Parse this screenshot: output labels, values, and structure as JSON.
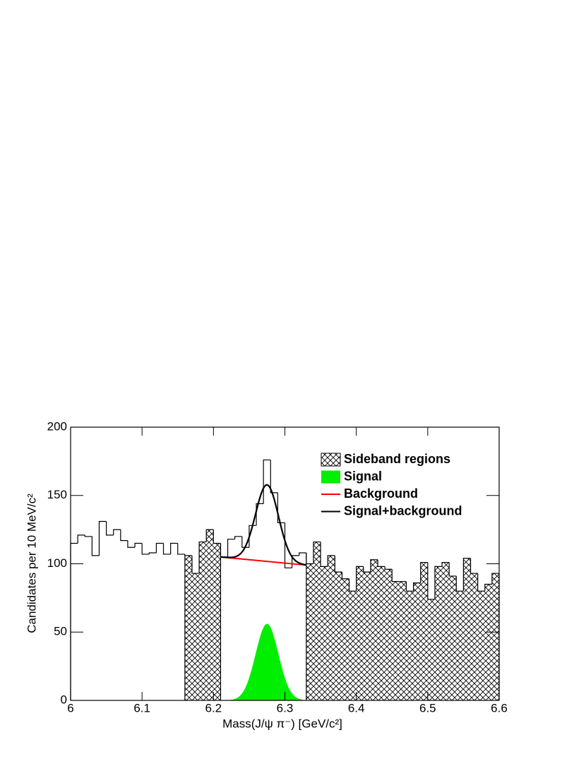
{
  "chart_data": {
    "type": "histogram",
    "xlabel": "Mass(J/ψ π⁻) [GeV/c²]",
    "ylabel": "Candidates per 10 MeV/c²",
    "bins": [
      6.0,
      6.01,
      6.02,
      6.03,
      6.04,
      6.05,
      6.06,
      6.07,
      6.08,
      6.09,
      6.1,
      6.11,
      6.12,
      6.13,
      6.14,
      6.15,
      6.16,
      6.17,
      6.18,
      6.19,
      6.2,
      6.21,
      6.22,
      6.23,
      6.24,
      6.25,
      6.26,
      6.27,
      6.28,
      6.29,
      6.3,
      6.31,
      6.32,
      6.33,
      6.34,
      6.35,
      6.36,
      6.37,
      6.38,
      6.39,
      6.4,
      6.41,
      6.42,
      6.43,
      6.44,
      6.45,
      6.46,
      6.47,
      6.48,
      6.49,
      6.5,
      6.51,
      6.52,
      6.53,
      6.54,
      6.55,
      6.56,
      6.57,
      6.58,
      6.59,
      6.6
    ],
    "values": [
      115,
      121,
      120,
      106,
      131,
      121,
      125,
      117,
      112,
      115,
      107,
      108,
      115,
      107,
      115,
      107,
      106,
      93,
      116,
      125,
      115,
      105,
      118,
      120,
      112,
      128,
      144,
      176,
      152,
      130,
      97,
      106,
      108,
      100,
      116,
      98,
      106,
      94,
      89,
      80,
      98,
      94,
      103,
      98,
      96,
      87,
      87,
      80,
      86,
      101,
      74,
      98,
      101,
      91,
      80,
      104,
      93,
      80,
      85,
      93
    ],
    "color": "#000000",
    "sideband": {
      "name": "Sideband regions",
      "regions": [
        [
          6.16,
          6.21
        ],
        [
          6.33,
          6.6
        ]
      ]
    },
    "signal": {
      "name": "Signal",
      "color": "#00ee00",
      "mean": 6.275,
      "sigma": 0.016,
      "amplitude": 56,
      "range": [
        6.21,
        6.33
      ]
    },
    "background": {
      "name": "Background",
      "color": "#ff0000",
      "x": [
        6.21,
        6.33
      ],
      "values": [
        105,
        99
      ]
    },
    "total": {
      "name": "Signal+background",
      "color": "#000000"
    },
    "xlim": [
      6.0,
      6.6
    ],
    "xticks": [
      6,
      6.1,
      6.2,
      6.3,
      6.4,
      6.5,
      6.6
    ],
    "ylim": [
      0,
      200
    ],
    "yticks": [
      0,
      50,
      100,
      150,
      200
    ],
    "legend": "upper right"
  }
}
